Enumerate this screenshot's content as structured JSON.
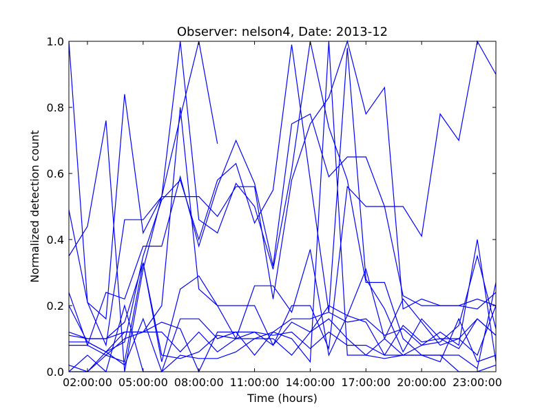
{
  "chart_data": {
    "type": "line",
    "title": "Observer: nelson4, Date: 2013-12",
    "xlabel": "Time (hours)",
    "ylabel": "Normalized detection count",
    "xlim": [
      1,
      24
    ],
    "ylim": [
      0,
      1
    ],
    "x_ticks": [
      {
        "value": 2,
        "label": "02:00:00"
      },
      {
        "value": 5,
        "label": "05:00:00"
      },
      {
        "value": 8,
        "label": "08:00:00"
      },
      {
        "value": 11,
        "label": "11:00:00"
      },
      {
        "value": 14,
        "label": "14:00:00"
      },
      {
        "value": 17,
        "label": "17:00:00"
      },
      {
        "value": 20,
        "label": "20:00:00"
      },
      {
        "value": 23,
        "label": "23:00:00"
      }
    ],
    "y_ticks": [
      {
        "value": 0.0,
        "label": "0.0"
      },
      {
        "value": 0.2,
        "label": "0.2"
      },
      {
        "value": 0.4,
        "label": "0.4"
      },
      {
        "value": 0.6,
        "label": "0.6"
      },
      {
        "value": 0.8,
        "label": "0.8"
      },
      {
        "value": 1.0,
        "label": "1.0"
      }
    ],
    "grid": false,
    "line_color": "#0000ff",
    "series": [
      {
        "x": [
          1,
          2,
          3,
          4,
          5,
          6,
          7,
          8,
          9
        ],
        "y": [
          0.35,
          0.44,
          0.76,
          0.0,
          0.31,
          0.53,
          0.77,
          1.0,
          0.69
        ]
      },
      {
        "x": [
          1,
          2,
          3,
          4,
          5,
          6,
          7,
          8,
          9,
          10,
          11,
          12,
          13,
          14,
          15,
          16,
          17,
          18,
          19,
          20,
          21,
          22,
          23,
          24
        ],
        "y": [
          1.0,
          0.21,
          0.16,
          0.84,
          0.42,
          0.53,
          1.0,
          0.46,
          0.42,
          0.57,
          0.5,
          0.31,
          0.61,
          1.0,
          0.74,
          0.58,
          0.27,
          0.27,
          0.1,
          0.05,
          0.05,
          0.05,
          0.01,
          0.27
        ]
      },
      {
        "x": [
          1,
          2,
          3,
          4,
          5,
          6,
          7,
          8,
          9,
          10,
          11,
          12,
          13,
          14,
          15,
          16,
          17,
          18,
          19,
          20,
          21,
          22,
          23,
          24
        ],
        "y": [
          0.49,
          0.21,
          0.08,
          0.46,
          0.46,
          0.53,
          0.53,
          0.53,
          0.47,
          0.56,
          0.56,
          0.22,
          0.58,
          0.75,
          0.83,
          1.0,
          0.78,
          0.86,
          0.19,
          0.22,
          0.2,
          0.2,
          0.22,
          0.2
        ]
      },
      {
        "x": [
          1,
          2,
          3,
          4,
          5,
          6,
          7,
          8,
          9,
          10,
          11,
          12,
          13,
          14,
          15,
          16,
          17,
          18,
          19,
          20,
          21,
          22,
          23,
          24
        ],
        "y": [
          0.24,
          0.08,
          0.24,
          0.22,
          0.38,
          0.38,
          0.59,
          0.38,
          0.56,
          0.7,
          0.57,
          0.32,
          0.75,
          0.78,
          0.59,
          0.65,
          0.65,
          0.5,
          0.5,
          0.41,
          0.78,
          0.7,
          1.0,
          0.9
        ]
      },
      {
        "x": [
          1,
          2,
          3,
          4,
          5,
          6,
          7,
          8,
          9,
          10,
          11,
          12,
          13,
          14,
          15,
          16,
          17,
          18,
          19,
          20,
          21,
          22,
          23,
          24
        ],
        "y": [
          0.12,
          0.1,
          0.1,
          0.15,
          0.33,
          0.03,
          0.25,
          0.29,
          0.2,
          0.2,
          0.2,
          0.08,
          0.2,
          0.2,
          0.07,
          0.56,
          0.5,
          0.5,
          0.23,
          0.2,
          0.2,
          0.2,
          0.19,
          0.24
        ]
      },
      {
        "x": [
          1,
          2,
          3,
          4,
          5,
          6,
          7,
          8,
          9,
          10,
          11,
          12,
          13,
          14,
          15,
          16,
          17,
          18,
          19,
          20,
          21,
          22,
          23,
          24
        ],
        "y": [
          0.2,
          0.09,
          0.06,
          0.09,
          0.35,
          0.52,
          0.58,
          0.4,
          0.58,
          0.63,
          0.45,
          0.55,
          0.99,
          0.58,
          0.18,
          0.98,
          0.28,
          0.19,
          0.06,
          0.16,
          0.1,
          0.1,
          0.16,
          0.11
        ]
      },
      {
        "x": [
          1,
          2,
          3,
          4,
          5,
          6,
          7,
          8,
          9,
          10,
          11,
          12,
          13,
          14,
          15,
          16,
          17,
          18,
          19,
          20,
          21,
          22,
          23,
          24
        ],
        "y": [
          0.09,
          0.09,
          0.06,
          0.12,
          0.12,
          0.2,
          0.8,
          0.25,
          0.2,
          0.1,
          0.26,
          0.26,
          0.18,
          0.37,
          0.05,
          0.17,
          0.15,
          0.05,
          0.05,
          0.05,
          0.05,
          0.0,
          0.0,
          0.02
        ]
      },
      {
        "x": [
          1,
          2,
          3,
          4,
          5,
          6,
          7,
          8,
          9,
          10,
          11,
          12,
          13,
          14,
          15,
          16,
          17,
          18,
          19,
          20,
          21,
          22,
          23,
          24
        ],
        "y": [
          0.02,
          0.0,
          0.06,
          0.02,
          0.16,
          0.0,
          0.05,
          0.04,
          0.04,
          0.06,
          0.1,
          0.1,
          0.05,
          0.12,
          0.2,
          0.17,
          0.31,
          0.1,
          0.22,
          0.15,
          0.08,
          0.1,
          0.05,
          0.2
        ]
      },
      {
        "x": [
          1,
          2,
          3,
          4,
          5,
          6,
          7,
          8,
          9,
          10,
          11,
          12,
          13,
          14,
          15,
          16,
          17,
          18,
          19,
          20,
          21,
          22,
          23,
          24
        ],
        "y": [
          0.0,
          0.05,
          0.0,
          0.2,
          0.0,
          0.0,
          0.16,
          0.16,
          0.1,
          0.12,
          0.12,
          0.11,
          0.12,
          0.07,
          0.12,
          0.08,
          0.08,
          0.05,
          0.14,
          0.09,
          0.1,
          0.07,
          0.16,
          0.11
        ]
      },
      {
        "x": [
          1,
          2,
          3,
          4,
          5,
          6,
          7,
          8,
          9,
          10,
          11,
          12,
          13,
          14,
          15,
          16,
          17,
          18,
          19,
          20,
          21,
          22,
          23,
          24
        ],
        "y": [
          0.08,
          0.08,
          0.05,
          0.1,
          0.12,
          0.15,
          0.13,
          0.0,
          0.12,
          0.12,
          0.05,
          0.12,
          0.16,
          0.16,
          0.18,
          0.15,
          0.16,
          0.11,
          0.13,
          0.08,
          0.09,
          0.14,
          0.35,
          0.13
        ]
      },
      {
        "x": [
          1,
          2,
          3,
          4,
          5,
          6,
          7,
          8,
          9,
          10,
          11,
          12,
          13,
          14,
          15,
          16,
          17,
          18,
          19,
          20,
          21,
          22,
          23,
          24
        ],
        "y": [
          0.0,
          0.0,
          0.05,
          0.03,
          0.33,
          0.05,
          0.04,
          0.06,
          0.11,
          0.1,
          0.1,
          0.12,
          0.1,
          0.03,
          1.0,
          0.05,
          0.05,
          0.04,
          0.05,
          0.08,
          0.12,
          0.08,
          0.4,
          0.03
        ]
      },
      {
        "x": [
          1,
          2,
          3,
          4,
          5,
          6,
          7,
          8,
          9,
          10,
          11,
          12,
          13,
          14,
          15,
          16,
          17,
          18,
          19,
          20,
          21,
          22,
          23,
          24
        ],
        "y": [
          0.11,
          0.1,
          0.1,
          0.12,
          0.12,
          0.12,
          0.06,
          0.12,
          0.06,
          0.1,
          0.12,
          0.08,
          0.15,
          0.12,
          0.16,
          0.1,
          0.05,
          0.1,
          0.05,
          0.05,
          0.03,
          0.16,
          0.03,
          0.05
        ]
      }
    ]
  }
}
